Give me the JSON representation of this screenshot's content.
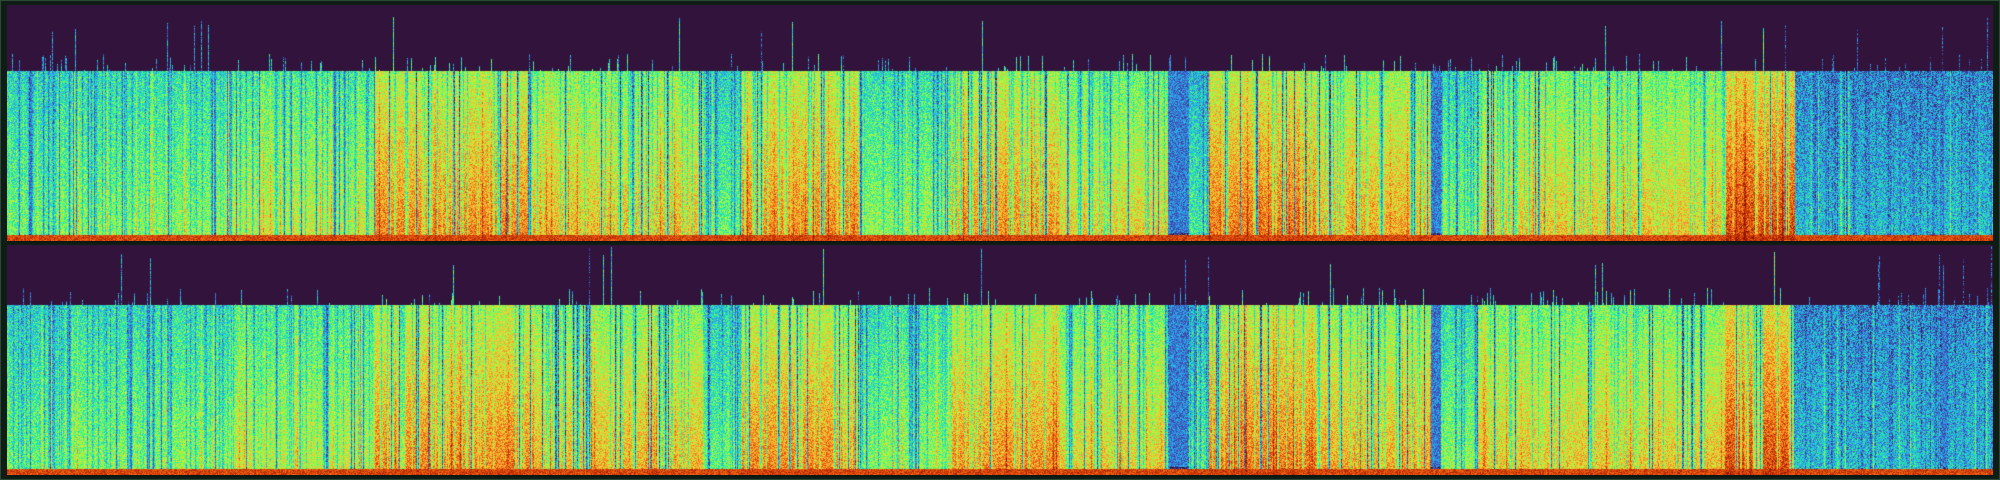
{
  "colors": {
    "background": "#14231c",
    "empty_band": "#31133b",
    "colormap": [
      "#30123b",
      "#3f4ab5",
      "#2ea9f0",
      "#1ae4b6",
      "#72fe5e",
      "#c8ef34",
      "#f9ba38",
      "#f3751b",
      "#d23a05",
      "#8a1002"
    ]
  },
  "spectrogram": {
    "colormap_name": "turbo",
    "channels": 2,
    "segments": [
      {
        "start": 0.0,
        "end": 0.025,
        "level": 0.4
      },
      {
        "start": 0.025,
        "end": 0.11,
        "level": 0.45
      },
      {
        "start": 0.11,
        "end": 0.185,
        "level": 0.52
      },
      {
        "start": 0.185,
        "end": 0.265,
        "level": 0.7
      },
      {
        "start": 0.265,
        "end": 0.35,
        "level": 0.62
      },
      {
        "start": 0.35,
        "end": 0.37,
        "level": 0.4
      },
      {
        "start": 0.37,
        "end": 0.43,
        "level": 0.7
      },
      {
        "start": 0.43,
        "end": 0.475,
        "level": 0.45
      },
      {
        "start": 0.475,
        "end": 0.53,
        "level": 0.68
      },
      {
        "start": 0.53,
        "end": 0.585,
        "level": 0.58
      },
      {
        "start": 0.585,
        "end": 0.595,
        "level": 0.05
      },
      {
        "start": 0.595,
        "end": 0.605,
        "level": 0.35
      },
      {
        "start": 0.605,
        "end": 0.66,
        "level": 0.72
      },
      {
        "start": 0.66,
        "end": 0.717,
        "level": 0.64
      },
      {
        "start": 0.717,
        "end": 0.722,
        "level": 0.05
      },
      {
        "start": 0.722,
        "end": 0.74,
        "level": 0.45
      },
      {
        "start": 0.74,
        "end": 0.865,
        "level": 0.6
      },
      {
        "start": 0.865,
        "end": 0.9,
        "level": 0.8
      },
      {
        "start": 0.9,
        "end": 1.0,
        "level": 0.25
      }
    ]
  }
}
